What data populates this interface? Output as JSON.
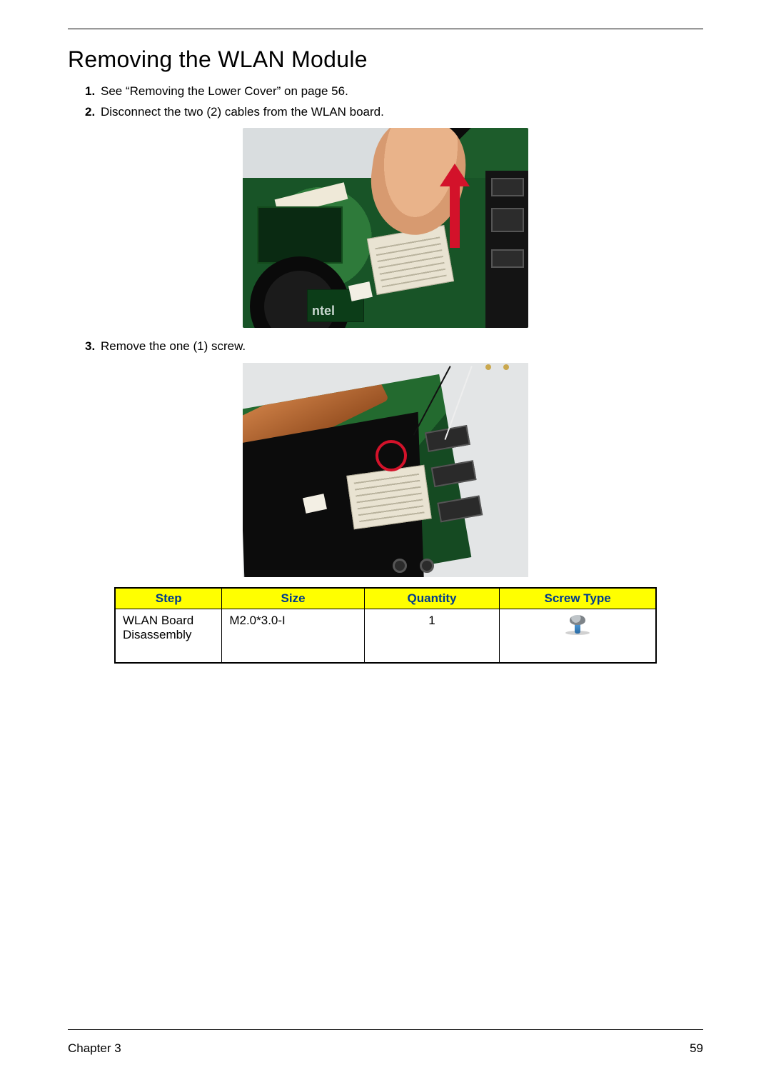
{
  "title": "Removing the WLAN Module",
  "steps": {
    "s1": "See “Removing the Lower Cover” on page 56.",
    "s2": "Disconnect the two (2) cables from the WLAN board.",
    "s3": "Remove the one (1) screw."
  },
  "table": {
    "headers": {
      "step": "Step",
      "size": "Size",
      "quantity": "Quantity",
      "screw_type": "Screw Type"
    },
    "row": {
      "step": "WLAN Board Disassembly",
      "size": "M2.0*3.0-I",
      "quantity": "1"
    },
    "header_bg": "#ffff00",
    "header_color": "#003b8e"
  },
  "footer": {
    "chapter": "Chapter 3",
    "page": "59"
  },
  "colors": {
    "arrow": "#d3122a",
    "circle": "#d3122a",
    "board_green": "#1d5c2b",
    "heatpipe": "#c77a42"
  }
}
